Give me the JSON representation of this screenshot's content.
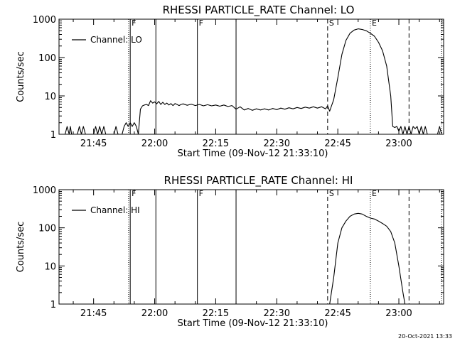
{
  "footer": {
    "timestamp": "20-Oct-2021 13:33"
  },
  "chart_data": [
    {
      "type": "line",
      "title": "RHESSI PARTICLE_RATE Channel: LO",
      "xlabel": "Start Time (09-Nov-12 21:33:10)",
      "ylabel": "Counts/sec",
      "yscale": "log",
      "ylim": [
        1,
        1000
      ],
      "xlim_minutes_after_2130": [
        6.5,
        101
      ],
      "x_ticks": [
        "21:45",
        "22:00",
        "22:15",
        "22:30",
        "22:45",
        "23:00"
      ],
      "y_ticks": [
        "1",
        "10",
        "100",
        "1000"
      ],
      "legend": {
        "entries": [
          "Channel: LO"
        ],
        "position": "top-left"
      },
      "series": [
        {
          "name": "Channel: LO",
          "x": [
            8.0,
            8.5,
            9.0,
            9.3,
            9.6,
            10.0,
            11.0,
            11.5,
            12.0,
            12.5,
            13.0,
            15.0,
            15.5,
            16.0,
            16.5,
            17.0,
            17.5,
            18.0,
            20.0,
            20.5,
            21.0,
            22.0,
            22.5,
            23.0,
            23.5,
            24.0,
            24.5,
            25.0,
            25.5,
            26.0,
            26.5,
            27.0,
            27.5,
            28.0,
            28.5,
            29.0,
            29.5,
            30.0,
            30.5,
            31.0,
            31.5,
            32.0,
            32.5,
            33.0,
            33.5,
            34.0,
            34.5,
            35.0,
            35.5,
            36.0,
            36.5,
            37.0,
            38.0,
            39.0,
            40.0,
            41.0,
            42.0,
            43.0,
            44.0,
            45.0,
            46.0,
            47.0,
            48.0,
            49.0,
            50.0,
            51.0,
            52.0,
            53.0,
            54.0,
            55.0,
            56.0,
            57.0,
            58.0,
            59.0,
            60.0,
            61.0,
            62.0,
            63.0,
            64.0,
            65.0,
            66.0,
            67.0,
            68.0,
            69.0,
            70.0,
            71.0,
            72.0,
            72.5,
            73.0,
            74.0,
            75.0,
            76.0,
            77.0,
            78.0,
            79.0,
            80.0,
            81.0,
            82.0,
            83.0,
            84.0,
            84.5,
            85.0,
            86.0,
            87.0,
            88.0,
            88.5,
            89.0,
            89.5,
            90.0,
            90.5,
            91.0,
            91.5,
            92.0,
            92.5,
            93.0,
            93.5,
            94.0,
            94.5,
            95.0,
            95.5,
            96.0,
            96.5,
            97.0,
            99.5,
            100.0,
            100.5
          ],
          "y": [
            1,
            1.6,
            1,
            1.6,
            1,
            1,
            1,
            1.6,
            1,
            1.6,
            1,
            1,
            1.6,
            1,
            1.6,
            1,
            1.6,
            1,
            1,
            1.6,
            1,
            1,
            1.6,
            2.0,
            1.6,
            2.0,
            1.6,
            2.0,
            1.6,
            1,
            4.5,
            5.5,
            5.8,
            6.0,
            5.6,
            7.5,
            6.5,
            7.0,
            6.2,
            7.2,
            6.0,
            6.8,
            6.0,
            6.5,
            5.8,
            6.3,
            5.6,
            6.3,
            6.0,
            5.6,
            6.0,
            6.2,
            5.7,
            6.1,
            5.6,
            6.0,
            5.5,
            5.9,
            5.5,
            5.8,
            5.4,
            5.8,
            5.3,
            5.6,
            4.5,
            5.2,
            4.3,
            4.7,
            4.2,
            4.6,
            4.3,
            4.6,
            4.3,
            4.7,
            4.4,
            4.8,
            4.5,
            4.9,
            4.6,
            5.0,
            4.7,
            5.1,
            4.8,
            5.2,
            4.8,
            5.2,
            4.6,
            5.5,
            4.0,
            8,
            30,
            120,
            280,
            430,
            520,
            560,
            540,
            500,
            430,
            360,
            300,
            250,
            150,
            60,
            10,
            1.6,
            1.5,
            1.6,
            1.2,
            1.6,
            1,
            1.6,
            1,
            1.6,
            1,
            1.6,
            1.4,
            1.6,
            1,
            1.6,
            1,
            1.6,
            1,
            1,
            1.6,
            1
          ]
        }
      ],
      "markers": [
        {
          "minute": 23.6,
          "style": "dotted",
          "label": ""
        },
        {
          "minute": 24.0,
          "style": "solid",
          "label": "F"
        },
        {
          "minute": 30.3,
          "style": "solid",
          "label": ""
        },
        {
          "minute": 40.5,
          "style": "solid",
          "label": "F"
        },
        {
          "minute": 50.0,
          "style": "solid",
          "label": ""
        },
        {
          "minute": 72.5,
          "style": "dashed",
          "label": "S"
        },
        {
          "minute": 83.0,
          "style": "dotted",
          "label": "E"
        },
        {
          "minute": 92.5,
          "style": "dashed",
          "label": ""
        },
        {
          "minute": 100.5,
          "style": "dotted",
          "label": ""
        }
      ]
    },
    {
      "type": "line",
      "title": "RHESSI PARTICLE_RATE Channel: HI",
      "xlabel": "Start Time (09-Nov-12 21:33:10)",
      "ylabel": "Counts/sec",
      "yscale": "log",
      "ylim": [
        1,
        1000
      ],
      "xlim_minutes_after_2130": [
        6.5,
        101
      ],
      "x_ticks": [
        "21:45",
        "22:00",
        "22:15",
        "22:30",
        "22:45",
        "23:00"
      ],
      "y_ticks": [
        "1",
        "10",
        "100",
        "1000"
      ],
      "legend": {
        "entries": [
          "Channel: HI"
        ],
        "position": "top-left"
      },
      "series": [
        {
          "name": "Channel: HI",
          "x": [
            73.0,
            74.0,
            75.0,
            76.0,
            77.0,
            78.0,
            79.0,
            80.0,
            81.0,
            82.0,
            83.0,
            84.0,
            85.0,
            86.0,
            87.0,
            88.0,
            89.0,
            90.0,
            91.0,
            91.5
          ],
          "y": [
            1,
            5,
            40,
            100,
            150,
            200,
            230,
            240,
            230,
            200,
            180,
            170,
            150,
            130,
            110,
            80,
            40,
            10,
            2,
            1
          ]
        }
      ],
      "markers": [
        {
          "minute": 23.6,
          "style": "dotted",
          "label": ""
        },
        {
          "minute": 24.0,
          "style": "solid",
          "label": "F"
        },
        {
          "minute": 30.3,
          "style": "solid",
          "label": ""
        },
        {
          "minute": 40.5,
          "style": "solid",
          "label": "F"
        },
        {
          "minute": 50.0,
          "style": "solid",
          "label": ""
        },
        {
          "minute": 72.5,
          "style": "dashed",
          "label": "S"
        },
        {
          "minute": 83.0,
          "style": "dotted",
          "label": "E"
        },
        {
          "minute": 92.5,
          "style": "dashed",
          "label": ""
        },
        {
          "minute": 100.5,
          "style": "dotted",
          "label": ""
        }
      ]
    }
  ]
}
